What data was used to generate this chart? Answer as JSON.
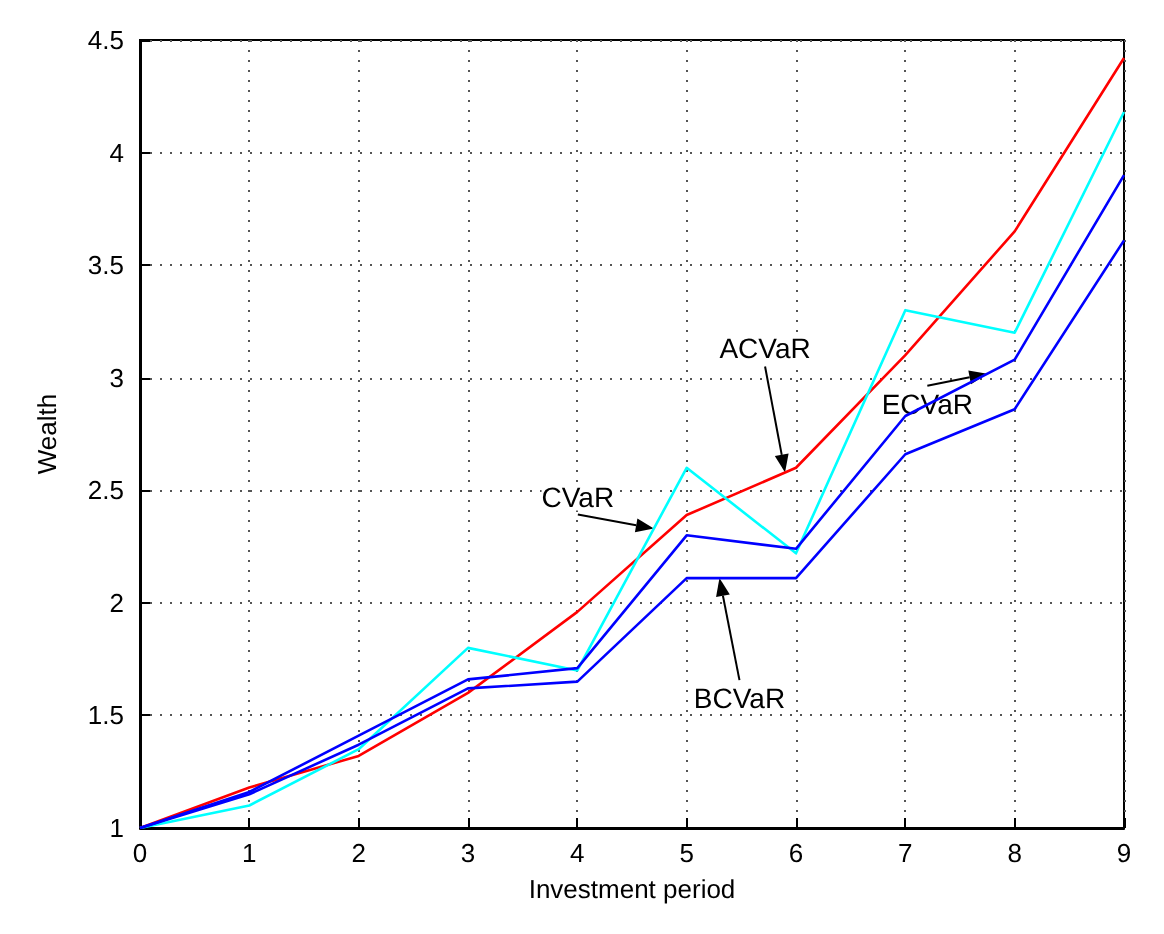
{
  "chart_data": {
    "type": "line",
    "xlabel": "Investment period",
    "ylabel": "Wealth",
    "x": [
      0,
      1,
      2,
      3,
      4,
      5,
      6,
      7,
      8,
      9
    ],
    "xlim": [
      0,
      9
    ],
    "xticks": [
      0,
      1,
      2,
      3,
      4,
      5,
      6,
      7,
      8,
      9
    ],
    "ylim": [
      1,
      4.5
    ],
    "yticks": [
      1,
      1.5,
      2,
      2.5,
      3,
      3.5,
      4,
      4.5
    ],
    "grid": true,
    "legend": false,
    "marker": "none",
    "line_style": "solid",
    "series": [
      {
        "name": "ACVaR",
        "color": "#ff0000",
        "values": [
          1,
          1.18,
          1.32,
          1.6,
          1.96,
          2.39,
          2.6,
          3.1,
          3.65,
          4.42
        ]
      },
      {
        "name": "CVaR",
        "color": "#00ffff",
        "values": [
          1,
          1.1,
          1.35,
          1.8,
          1.7,
          2.6,
          2.22,
          3.3,
          3.2,
          4.18
        ]
      },
      {
        "name": "ECVaR",
        "color": "#0000ff",
        "values": [
          1,
          1.16,
          1.41,
          1.66,
          1.71,
          2.3,
          2.24,
          2.83,
          3.08,
          3.9
        ]
      },
      {
        "name": "BCVaR",
        "color": "#0000ff",
        "values": [
          1,
          1.15,
          1.37,
          1.62,
          1.65,
          2.11,
          2.11,
          2.66,
          2.86,
          3.61
        ]
      }
    ]
  }
}
